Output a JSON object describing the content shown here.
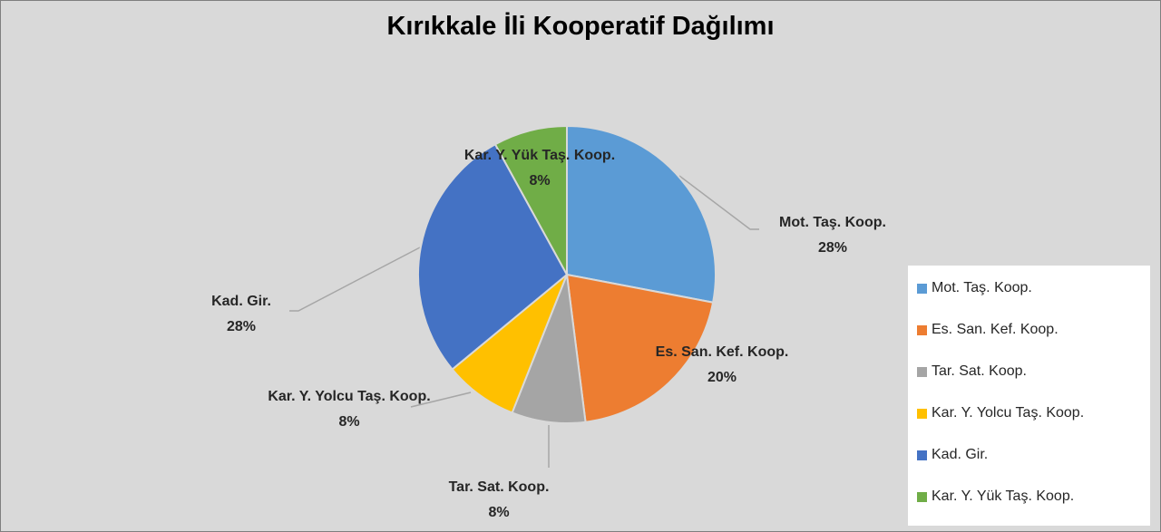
{
  "chart_data": {
    "type": "pie",
    "title": "Kırıkkale İli Kooperatif Dağılımı",
    "categories": [
      "Mot. Taş. Koop.",
      "Es. San. Kef. Koop.",
      "Tar. Sat. Koop.",
      "Kar. Y. Yolcu Taş. Koop.",
      "Kad. Gir.",
      "Kar. Y. Yük Taş. Koop."
    ],
    "values": [
      28,
      20,
      8,
      8,
      28,
      8
    ],
    "value_labels": [
      "28%",
      "20%",
      "8%",
      "8%",
      "28%",
      "8%"
    ],
    "colors": [
      "#5b9bd5",
      "#ed7d31",
      "#a5a5a5",
      "#ffc000",
      "#4472c4",
      "#70ad47"
    ],
    "legend": "right"
  }
}
